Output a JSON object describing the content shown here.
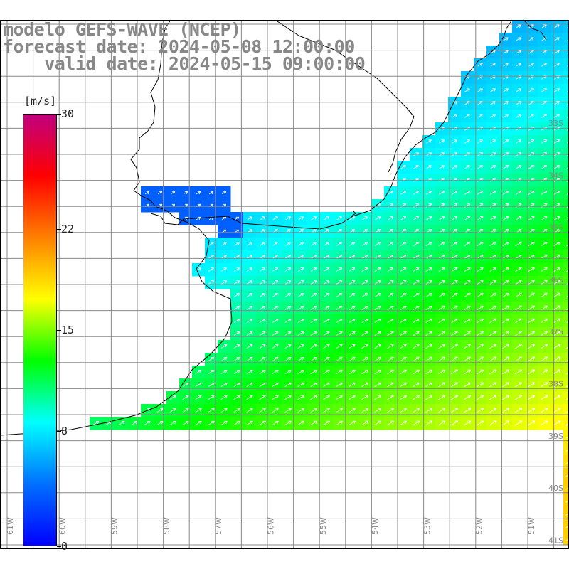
{
  "title": {
    "line1": "modelo GEFS-WAVE (NCEP)",
    "line2": "forecast date: 2024-05-08 12:00:00",
    "line3": "    valid date: 2024-05-15 09:00:00"
  },
  "colorbar": {
    "unit": "[m/s]",
    "ticks": [
      "30",
      "22",
      "15",
      "8",
      "0"
    ],
    "tick_values": [
      30,
      22,
      15,
      8,
      0
    ],
    "colors": [
      "#0000ff",
      "#0070ff",
      "#00ffff",
      "#00ff00",
      "#ffff00",
      "#ff8000",
      "#ff0000",
      "#c00080"
    ]
  },
  "lat_labels": [
    "33S",
    "34S",
    "35S",
    "36S",
    "37S",
    "38S",
    "39S",
    "40S",
    "41S"
  ],
  "lon_labels": [
    "61W",
    "60W",
    "59W",
    "58W",
    "57W",
    "56W",
    "55W",
    "54W",
    "53W",
    "52W",
    "51W"
  ],
  "wind_direction": "toward-northeast",
  "land_color": "#ffffff",
  "coast_color": "#000000",
  "grid_color": "#888888"
}
